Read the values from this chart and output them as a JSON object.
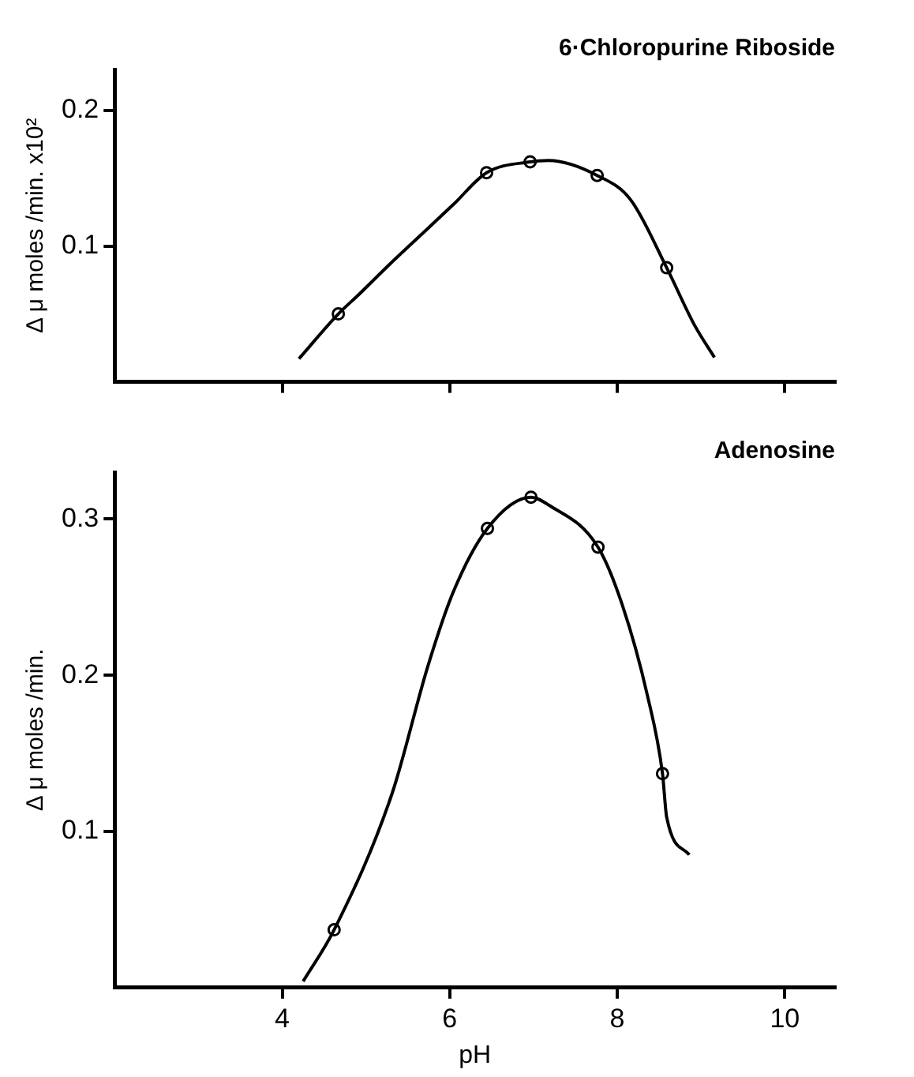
{
  "chart_data": [
    {
      "type": "scatter",
      "title": "6·Chloropurine Riboside",
      "ylabel": "Δ μ moles /min. x10²",
      "xlim": [
        2,
        10.6
      ],
      "xticks": [
        4,
        6,
        8,
        10
      ],
      "ylim": [
        0,
        0.23
      ],
      "yticks": [
        0.1,
        0.2
      ],
      "tick_labels": "y",
      "grid": false,
      "legend": false,
      "series": [
        {
          "type": "line",
          "color": "#000000",
          "marker": "none",
          "x": [
            4.2,
            4.67,
            4.91,
            5.29,
            5.74,
            6.05,
            6.44,
            6.96,
            7.18,
            7.76,
            8.16,
            8.59,
            8.92,
            9.16
          ],
          "values": [
            0.017,
            0.05,
            0.064,
            0.087,
            0.113,
            0.131,
            0.154,
            0.162,
            0.163,
            0.152,
            0.134,
            0.084,
            0.042,
            0.018
          ]
        },
        {
          "type": "scatter",
          "color": "#000000",
          "marker": "circle",
          "x": [
            4.67,
            6.44,
            6.96,
            7.76,
            8.59
          ],
          "values": [
            0.05,
            0.154,
            0.162,
            0.152,
            0.084
          ]
        }
      ]
    },
    {
      "type": "scatter",
      "title": "Adenosine",
      "xlabel": "pH",
      "ylabel": "Δ μ moles /min.",
      "xlim": [
        2,
        10.6
      ],
      "xticks": [
        4,
        6,
        8,
        10
      ],
      "ylim": [
        0,
        0.33
      ],
      "yticks": [
        0.1,
        0.2,
        0.3
      ],
      "grid": false,
      "legend": false,
      "series": [
        {
          "type": "line",
          "color": "#000000",
          "marker": "none",
          "x": [
            4.25,
            4.62,
            5.31,
            5.74,
            6.04,
            6.45,
            6.97,
            7.18,
            7.77,
            8.06,
            8.36,
            8.54,
            8.59,
            8.86
          ],
          "values": [
            0.004,
            0.037,
            0.124,
            0.206,
            0.253,
            0.294,
            0.314,
            0.309,
            0.282,
            0.245,
            0.187,
            0.137,
            0.109,
            0.085
          ]
        },
        {
          "type": "scatter",
          "color": "#000000",
          "marker": "circle",
          "x": [
            4.62,
            6.45,
            6.97,
            7.77,
            8.54
          ],
          "values": [
            0.037,
            0.294,
            0.314,
            0.282,
            0.137
          ]
        }
      ]
    }
  ]
}
